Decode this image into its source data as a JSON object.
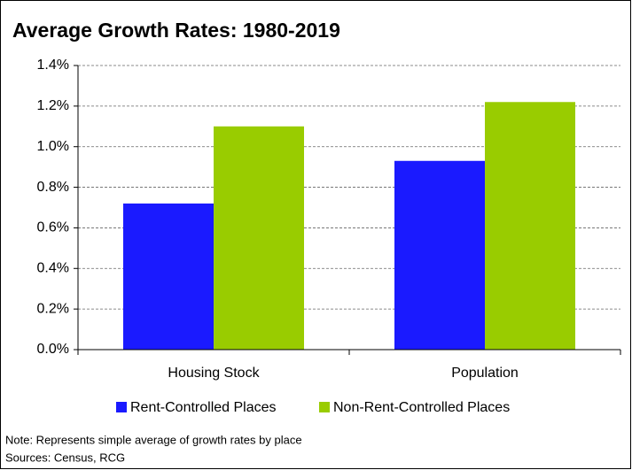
{
  "chart_data": {
    "type": "bar",
    "title": "Average Growth Rates: 1980-2019",
    "categories": [
      "Housing Stock",
      "Population"
    ],
    "series": [
      {
        "name": "Rent-Controlled Places",
        "color": "#1a1aff",
        "values": [
          0.72,
          0.93
        ]
      },
      {
        "name": "Non-Rent-Controlled Places",
        "color": "#99cc00",
        "values": [
          1.1,
          1.22
        ]
      }
    ],
    "ylim": [
      0,
      1.4
    ],
    "yticks": [
      {
        "value": 0,
        "label": "0.0%"
      },
      {
        "value": 0.2,
        "label": "0.2%"
      },
      {
        "value": 0.4,
        "label": "0.4%"
      },
      {
        "value": 0.6,
        "label": "0.6%"
      },
      {
        "value": 0.8,
        "label": "0.8%"
      },
      {
        "value": 1.0,
        "label": "1.0%"
      },
      {
        "value": 1.2,
        "label": "1.2%"
      },
      {
        "value": 1.4,
        "label": "1.4%"
      }
    ],
    "grid": true,
    "note": "Note: Represents simple average of growth rates by place",
    "source": "Sources: Census, RCG"
  }
}
